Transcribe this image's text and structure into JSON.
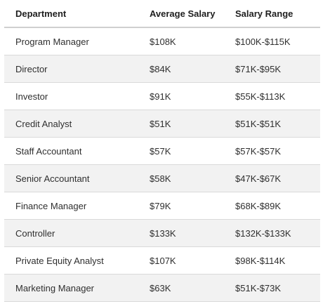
{
  "table": {
    "columns": [
      "Department",
      "Average Salary",
      "Salary Range"
    ],
    "rows": [
      {
        "department": "Program Manager",
        "average_salary": "$108K",
        "salary_range": "$100K-$115K"
      },
      {
        "department": "Director",
        "average_salary": "$84K",
        "salary_range": "$71K-$95K"
      },
      {
        "department": "Investor",
        "average_salary": "$91K",
        "salary_range": "$55K-$113K"
      },
      {
        "department": "Credit Analyst",
        "average_salary": "$51K",
        "salary_range": "$51K-$51K"
      },
      {
        "department": "Staff Accountant",
        "average_salary": "$57K",
        "salary_range": "$57K-$57K"
      },
      {
        "department": "Senior Accountant",
        "average_salary": "$58K",
        "salary_range": "$47K-$67K"
      },
      {
        "department": "Finance Manager",
        "average_salary": "$79K",
        "salary_range": "$68K-$89K"
      },
      {
        "department": "Controller",
        "average_salary": "$133K",
        "salary_range": "$132K-$133K"
      },
      {
        "department": "Private Equity Analyst",
        "average_salary": "$107K",
        "salary_range": "$98K-$114K"
      },
      {
        "department": "Marketing Manager",
        "average_salary": "$63K",
        "salary_range": "$51K-$73K"
      }
    ]
  },
  "colors": {
    "header_border": "#cfcfcf",
    "row_border": "#d9d9d9",
    "stripe": "#f2f2f2",
    "text": "#2f2f2f"
  }
}
